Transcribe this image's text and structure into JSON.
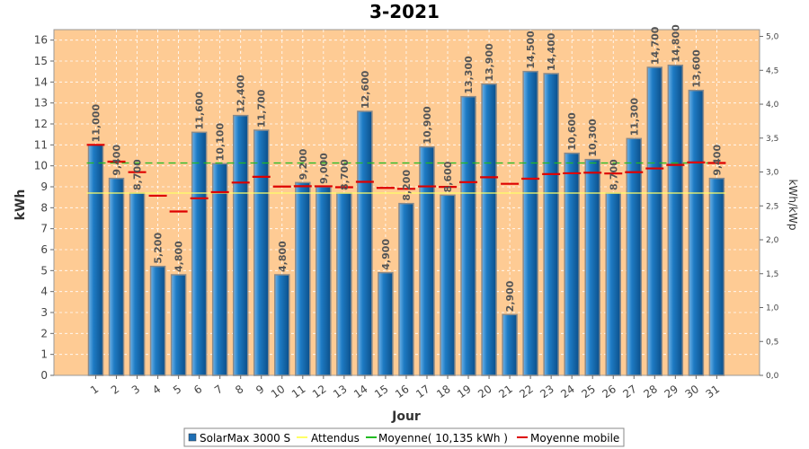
{
  "chart_data": {
    "type": "bar",
    "title": "3-2021",
    "xlabel": "Jour",
    "ylabel": "kWh",
    "y2label": "kWh/kWp",
    "ylim": [
      0,
      16.5
    ],
    "y2lim": [
      0,
      5.1
    ],
    "yticks": [
      "0",
      "1",
      "2",
      "3",
      "4",
      "5",
      "6",
      "7",
      "8",
      "9",
      "10",
      "11",
      "12",
      "13",
      "14",
      "15",
      "16"
    ],
    "y2ticks": [
      "0,0",
      "0,5",
      "1,0",
      "1,5",
      "2,0",
      "2,5",
      "3,0",
      "3,5",
      "4,0",
      "4,5",
      "5,0"
    ],
    "categories": [
      "1",
      "2",
      "3",
      "4",
      "5",
      "6",
      "7",
      "8",
      "9",
      "10",
      "11",
      "12",
      "13",
      "14",
      "15",
      "16",
      "17",
      "18",
      "19",
      "20",
      "21",
      "22",
      "23",
      "24",
      "25",
      "26",
      "27",
      "28",
      "29",
      "30",
      "31"
    ],
    "series": [
      {
        "name": "SolarMax 3000 S",
        "type": "bar",
        "color": "#1f6fb5",
        "values": [
          11.0,
          9.4,
          8.7,
          5.2,
          4.8,
          11.6,
          10.1,
          12.4,
          11.7,
          4.8,
          9.2,
          9.0,
          8.7,
          12.6,
          4.9,
          8.2,
          10.9,
          8.6,
          13.3,
          13.9,
          2.9,
          14.5,
          14.4,
          10.6,
          10.3,
          8.7,
          11.3,
          14.7,
          14.8,
          13.6,
          9.4
        ],
        "labels": [
          "11,000",
          "9,400",
          "8,700",
          "5,200",
          "4,800",
          "11,600",
          "10,100",
          "12,400",
          "11,700",
          "4,800",
          "9,200",
          "9,000",
          "8,700",
          "12,600",
          "4,900",
          "8,200",
          "10,900",
          "8,600",
          "13,300",
          "13,900",
          "2,900",
          "14,500",
          "14,400",
          "10,600",
          "10,300",
          "8,700",
          "11,300",
          "14,700",
          "14,800",
          "13,600",
          "9,400"
        ]
      },
      {
        "name": "Attendus",
        "type": "hline",
        "color": "#ffff66",
        "value": 8.7
      },
      {
        "name": "Moyenne( 10,135 kWh )",
        "type": "hline",
        "color": "#22bb22",
        "value": 10.135
      },
      {
        "name": "Moyenne mobile",
        "type": "step",
        "color": "#dd0000",
        "values": [
          11.0,
          10.2,
          9.7,
          8.575,
          7.82,
          8.45,
          8.743,
          9.2,
          9.478,
          9.01,
          9.027,
          9.025,
          8.977,
          9.236,
          8.947,
          8.9,
          9.018,
          8.994,
          9.221,
          9.455,
          9.143,
          9.386,
          9.604,
          9.646,
          9.672,
          9.635,
          9.696,
          9.875,
          10.045,
          10.163,
          10.135
        ]
      }
    ],
    "grid": true,
    "legend": "bottom"
  }
}
